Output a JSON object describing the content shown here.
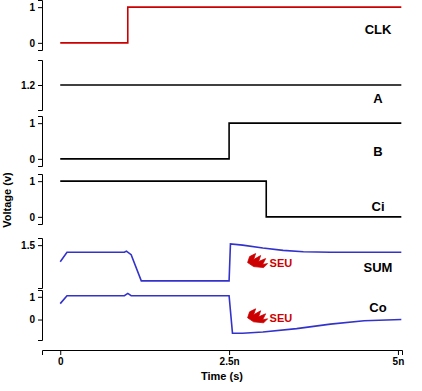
{
  "chart_data": {
    "type": "line",
    "x_label": "Time (s)",
    "y_label": "Voltage (v)",
    "xlim": [
      -2.7e-10,
      5.06e-09
    ],
    "xticks": [
      0,
      {
        "value": 2.5e-09,
        "label": "2.5n"
      },
      {
        "value": 5e-09,
        "label": "5n"
      }
    ],
    "series": [
      {
        "name": "CLK",
        "color": "#cc0000",
        "ylim": [
          -0.2,
          1.2
        ],
        "yticks": [
          0,
          1
        ],
        "x": [
          0,
          1e-09,
          1e-09,
          5.05e-09
        ],
        "values": [
          0,
          0,
          1,
          1
        ]
      },
      {
        "name": "A",
        "color": "#000000",
        "ylim": [
          0.7,
          1.7
        ],
        "yticks": [
          1.2
        ],
        "x": [
          0,
          5.05e-09
        ],
        "values": [
          1.2,
          1.2
        ]
      },
      {
        "name": "B",
        "color": "#000000",
        "ylim": [
          -0.2,
          1.2
        ],
        "yticks": [
          0,
          1
        ],
        "x": [
          0,
          2.5e-09,
          2.5e-09,
          5.05e-09
        ],
        "values": [
          0,
          0,
          1,
          1
        ]
      },
      {
        "name": "Ci",
        "color": "#000000",
        "ylim": [
          -0.2,
          1.2
        ],
        "yticks": [
          0,
          1
        ],
        "x": [
          0,
          3.05e-09,
          3.05e-09,
          5.05e-09
        ],
        "values": [
          1,
          1,
          0,
          0
        ]
      },
      {
        "name": "SUM",
        "color": "#3333cc",
        "ylim": [
          -0.3,
          1.8
        ],
        "yticks": [
          1.5
        ],
        "x": [
          0,
          1e-10,
          9.5e-10,
          9.8e-10,
          1.05e-09,
          1.2e-09,
          2.5e-09,
          2.52e-09,
          2.7e-09,
          3e-09,
          3.3e-09,
          3.6e-09,
          4e-09,
          5.05e-09
        ],
        "values": [
          0.8,
          1.2,
          1.2,
          1.25,
          1.1,
          0,
          0,
          1.55,
          1.5,
          1.38,
          1.28,
          1.22,
          1.2,
          1.2
        ],
        "annotations": [
          {
            "text": "SEU",
            "x": 3.1e-09,
            "y": 0.6
          }
        ]
      },
      {
        "name": "Co",
        "color": "#3333cc",
        "ylim": [
          -0.9,
          1.3
        ],
        "yticks": [
          0,
          1
        ],
        "x": [
          0,
          1e-10,
          9.5e-10,
          1e-09,
          1.05e-09,
          2.5e-09,
          2.55e-09,
          2.7e-09,
          3e-09,
          3.5e-09,
          4e-09,
          4.5e-09,
          5.05e-09
        ],
        "values": [
          0.7,
          1.05,
          1.05,
          1.15,
          1.05,
          1.05,
          -0.6,
          -0.6,
          -0.55,
          -0.4,
          -0.2,
          -0.05,
          0
        ],
        "annotations": [
          {
            "text": "SEU",
            "x": 3.1e-09,
            "y": -0.1
          }
        ]
      }
    ]
  }
}
